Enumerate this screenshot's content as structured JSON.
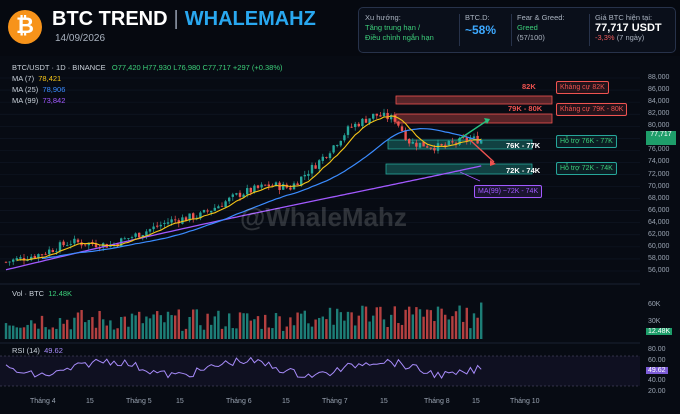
{
  "header": {
    "logo": "₿",
    "title": "BTC TREND",
    "separator": "|",
    "brand": "WHALEMAHZ",
    "date": "14/09/2026"
  },
  "info_panel": {
    "trend_label": "Xu hướng:",
    "trend_line1": "Tăng trung hạn /",
    "trend_line2": "Điều chỉnh ngắn hạn",
    "dom_label": "BTC.D:",
    "dom_value": "~58%",
    "fg_label": "Fear & Greed:",
    "fg_value": "Greed",
    "fg_score": "(57/100)",
    "price_label": "Giá BTC hiện tại:",
    "price_value": "77,717 USDT",
    "price_change": "-3,3%",
    "price_period": "(7 ngày)"
  },
  "legend": {
    "symbol": "BTC/USDT · 1D · BINANCE",
    "o": "O77,420",
    "h": "H77,930",
    "l": "L76,980",
    "c": "C77,717",
    "chg": "+297 (+0.38%)",
    "ma7_label": "MA (7)",
    "ma7_value": "78,421",
    "ma25_label": "MA (25)",
    "ma25_value": "78,906",
    "ma99_label": "MA (99)",
    "ma99_value": "73,842"
  },
  "levels": {
    "r82": "82K",
    "r82_tag": "Kháng cự 82K",
    "r80": "79K - 80K",
    "r80_tag": "Kháng cự 79K - 80K",
    "s77": "76K - 77K",
    "s77_tag": "Hỗ trợ 76K - 77K",
    "s72": "72K - 74K",
    "s72_tag": "Hỗ trợ 72K - 74K",
    "ma99_tag": "MA(99) ~72K - 74K"
  },
  "watermark": "@WhaleMahz",
  "price_axis": [
    "88,000",
    "86,000",
    "84,000",
    "82,000",
    "80,000",
    "78,000",
    "76,000",
    "74,000",
    "72,000",
    "70,000",
    "68,000",
    "66,000",
    "64,000",
    "62,000",
    "60,000",
    "58,000",
    "56,000"
  ],
  "current_price": "77,717",
  "volume": {
    "label": "Vol · BTC",
    "value": "12.48K",
    "ax1": "60K",
    "ax2": "30K",
    "badge": "12.48K"
  },
  "rsi": {
    "label": "RSI (14)",
    "value": "49.62",
    "ax1": "80.00",
    "ax2": "60.00",
    "ax3": "40.00",
    "ax4": "20.00",
    "badge": "49.62"
  },
  "x_axis": [
    "Tháng 4",
    "15",
    "Tháng 5",
    "15",
    "Tháng 6",
    "15",
    "Tháng 7",
    "15",
    "Tháng 8",
    "15",
    "Tháng 10"
  ],
  "colors": {
    "up": "#26a69a",
    "down": "#ef5350",
    "ma7": "#f5c518",
    "ma25": "#3b8cff",
    "ma99": "#a259ff",
    "accent": "#29a8f0"
  },
  "chart_data": {
    "type": "candlestick",
    "ma7": 78421,
    "ma25": 78906,
    "ma99": 73842,
    "last_close": 77717,
    "ylim": [
      56000,
      88000
    ]
  }
}
